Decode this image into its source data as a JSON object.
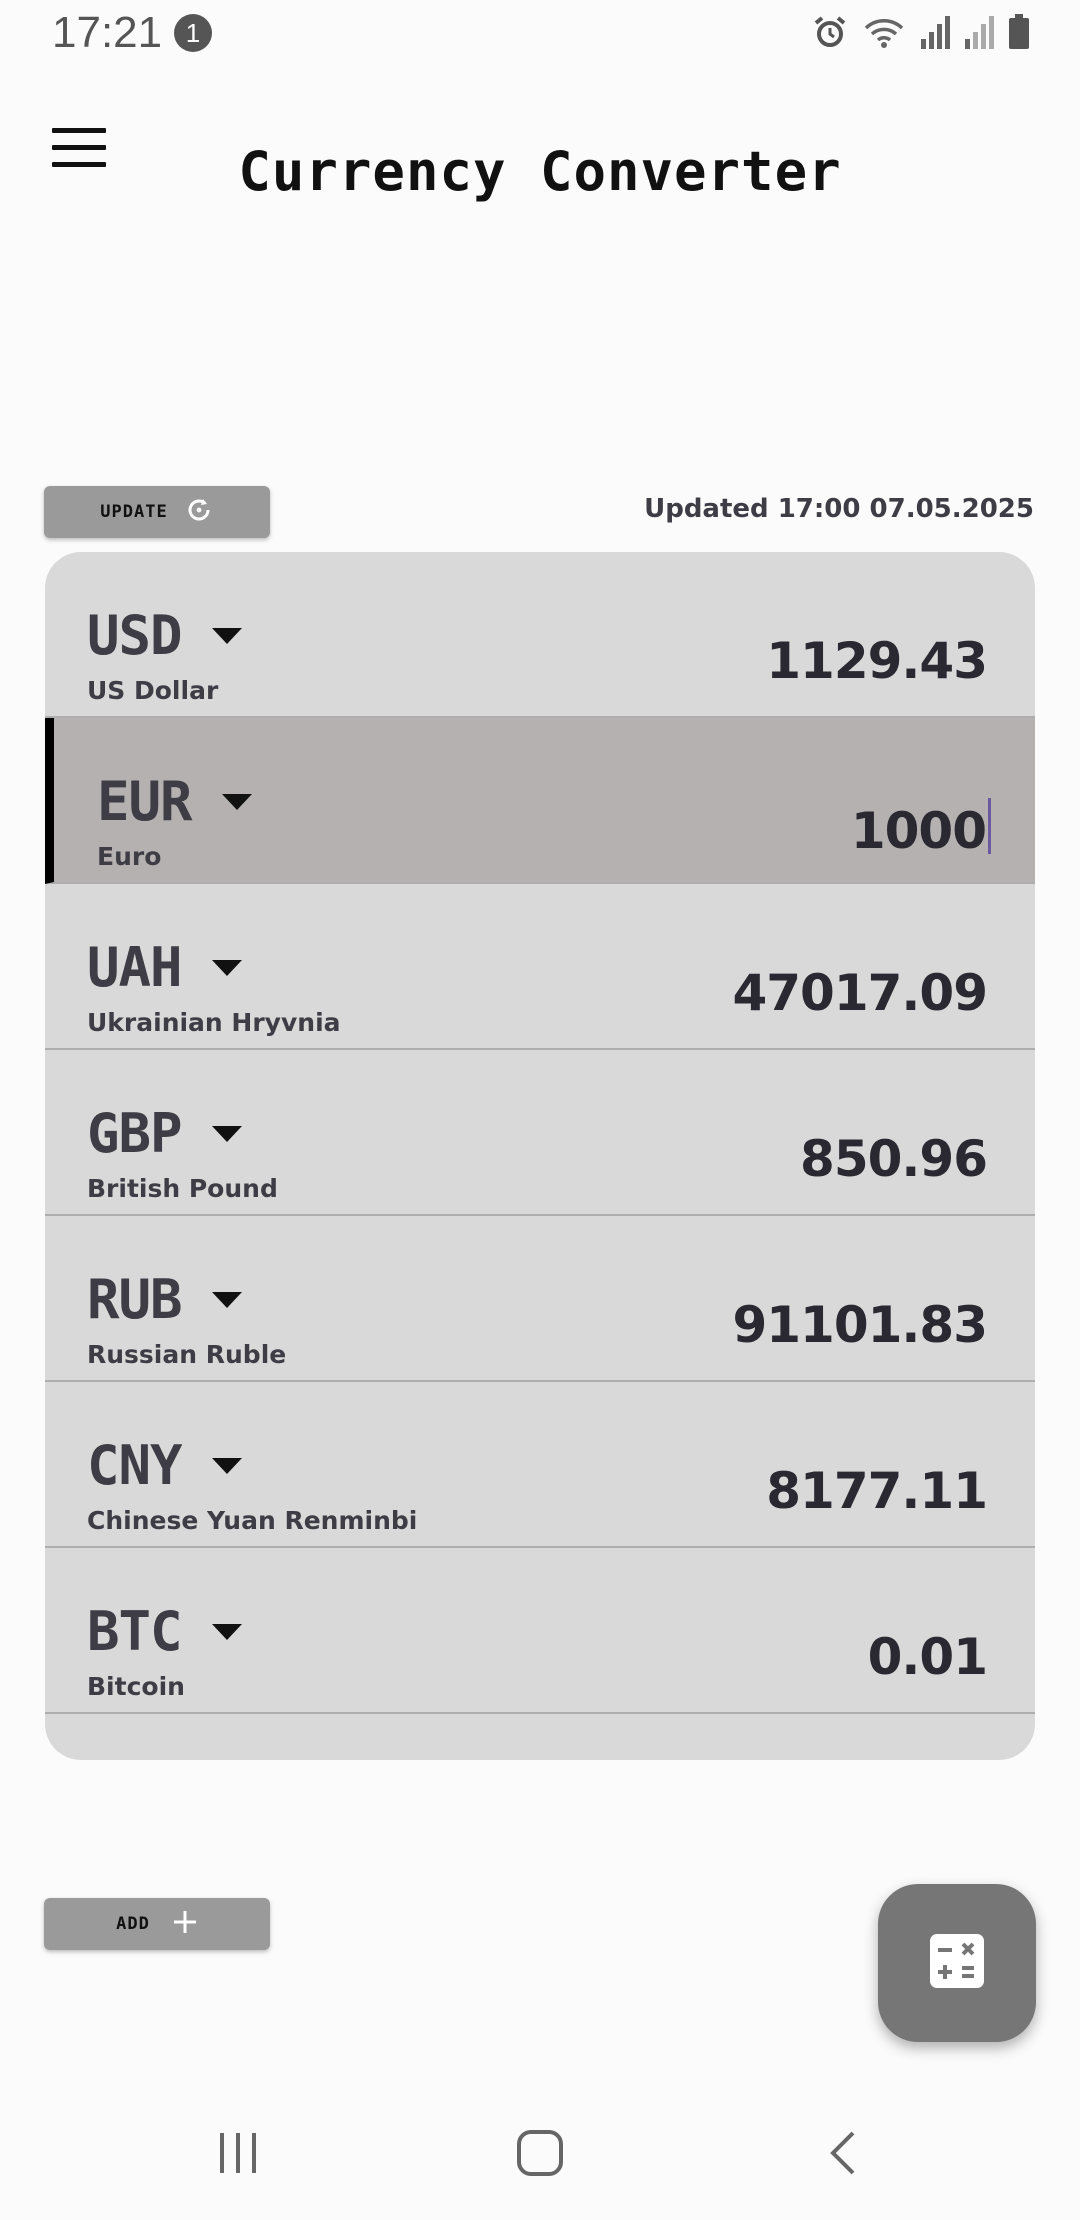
{
  "status_bar": {
    "time": "17:21",
    "notification_count": "1",
    "icons": [
      "alarm-icon",
      "wifi-icon",
      "signal-icon",
      "signal-weak-icon",
      "battery-icon"
    ]
  },
  "header": {
    "title": "Currency Converter",
    "menu_icon": "hamburger-menu-icon"
  },
  "toolbar": {
    "update_label": "UPDATE",
    "update_icon": "refresh-icon",
    "updated_text": "Updated 17:00 07.05.2025"
  },
  "currencies": [
    {
      "code": "USD",
      "name": "US Dollar",
      "amount": "1129.43",
      "selected": false
    },
    {
      "code": "EUR",
      "name": "Euro",
      "amount": "1000",
      "selected": true
    },
    {
      "code": "UAH",
      "name": "Ukrainian Hryvnia",
      "amount": "47017.09",
      "selected": false
    },
    {
      "code": "GBP",
      "name": "British Pound",
      "amount": "850.96",
      "selected": false
    },
    {
      "code": "RUB",
      "name": "Russian Ruble",
      "amount": "91101.83",
      "selected": false
    },
    {
      "code": "CNY",
      "name": "Chinese Yuan Renminbi",
      "amount": "8177.11",
      "selected": false
    },
    {
      "code": "BTC",
      "name": "Bitcoin",
      "amount": "0.01",
      "selected": false
    }
  ],
  "bottom": {
    "add_label": "ADD",
    "add_icon": "plus-icon",
    "fab_icon": "calculator-icon"
  },
  "nav": {
    "icons": [
      "recent-apps-icon",
      "home-icon",
      "back-icon"
    ]
  },
  "colors": {
    "background": "#fbfbfb",
    "list_background": "#d9d9d9",
    "selected_row": "#b5b1b1",
    "button": "#9a9a9a",
    "fab": "#767676",
    "text": "#3e3c44"
  }
}
